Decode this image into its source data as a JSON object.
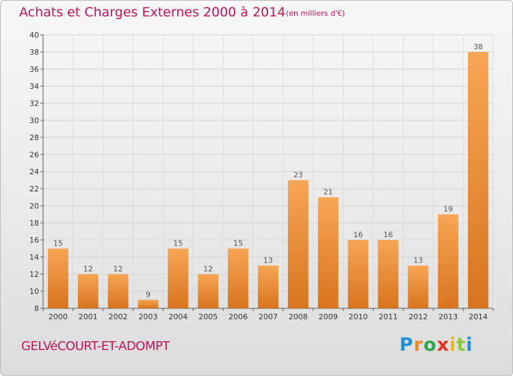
{
  "header": {
    "title": "Achats et Charges Externes 2000 à 2014",
    "unit": "(en milliers d'€)"
  },
  "footer": {
    "commune": "GELVéCOURT-ET-ADOMPT",
    "logo_letters": [
      "P",
      "r",
      "o",
      "x",
      "i",
      "t",
      "i"
    ],
    "logo_colors": [
      "#1e90d6",
      "#f08a1c",
      "#2aa84a",
      "#e0301e",
      "#f2b705",
      "#8cc63f",
      "#1e90d6"
    ]
  },
  "colors": {
    "bar_light": "#f7a655",
    "bar_dark": "#d9741e",
    "title": "#c0145a"
  },
  "chart_data": {
    "type": "bar",
    "title": "Achats et Charges Externes 2000 à 2014",
    "subtitle": "(en milliers d'€)",
    "xlabel": "",
    "ylabel": "",
    "categories": [
      "2000",
      "2001",
      "2002",
      "2003",
      "2004",
      "2005",
      "2006",
      "2007",
      "2008",
      "2009",
      "2010",
      "2011",
      "2012",
      "2013",
      "2014"
    ],
    "values": [
      15,
      12,
      12,
      9,
      15,
      12,
      15,
      13,
      23,
      21,
      16,
      16,
      13,
      19,
      38
    ],
    "ylim": [
      8,
      40
    ],
    "yticks": [
      8,
      10,
      12,
      14,
      16,
      18,
      20,
      22,
      24,
      26,
      28,
      30,
      32,
      34,
      36,
      38,
      40
    ],
    "grid": true,
    "data_labels": true
  }
}
